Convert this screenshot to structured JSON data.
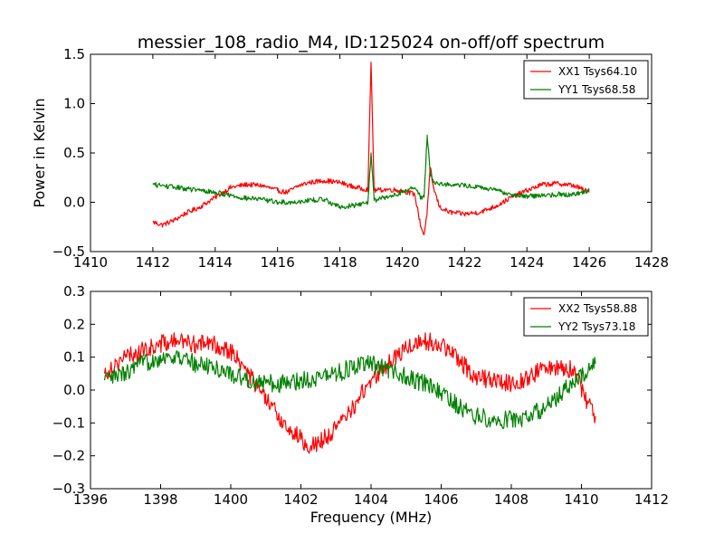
{
  "page": {
    "title": "messier_108_radio_M4, ID:125024 on-off/off spectrum",
    "ylabel": "Power in Kelvin",
    "xlabel": "Frequency (MHz)"
  },
  "colors": {
    "series_1": "#ff0000",
    "series_2": "#008000",
    "axes": "#000000",
    "background": "#ffffff"
  },
  "chart_data": [
    {
      "type": "line",
      "title": "messier_108_radio_M4, ID:125024 on-off/off spectrum",
      "xlabel": "",
      "ylabel": "Power in Kelvin",
      "xlim": [
        1410,
        1428
      ],
      "ylim": [
        -0.5,
        1.5
      ],
      "x_ticks": [
        "1410",
        "1412",
        "1414",
        "1416",
        "1418",
        "1420",
        "1422",
        "1424",
        "1426",
        "1428"
      ],
      "y_ticks": [
        "1.5",
        "1.0",
        "0.5",
        "0.0",
        "−0.5"
      ],
      "grid": false,
      "legend_position": "top-right",
      "series": [
        {
          "name": "XX1 Tsys64.10",
          "color": "#ff0000",
          "x": [
            1412.0,
            1412.3,
            1412.7,
            1413.0,
            1413.5,
            1414.0,
            1414.5,
            1415.0,
            1415.5,
            1416.0,
            1416.3,
            1416.7,
            1417.0,
            1417.5,
            1418.0,
            1418.5,
            1418.9,
            1419.0,
            1419.1,
            1419.5,
            1420.0,
            1420.4,
            1420.6,
            1420.7,
            1420.8,
            1420.9,
            1421.0,
            1421.2,
            1421.5,
            1422.0,
            1422.5,
            1423.0,
            1423.5,
            1424.0,
            1424.5,
            1425.0,
            1425.5,
            1426.0
          ],
          "y": [
            -0.2,
            -0.23,
            -0.18,
            -0.12,
            -0.05,
            0.05,
            0.15,
            0.18,
            0.17,
            0.12,
            0.1,
            0.17,
            0.2,
            0.22,
            0.2,
            0.15,
            0.13,
            1.42,
            0.12,
            0.13,
            0.12,
            0.08,
            -0.25,
            -0.33,
            -0.1,
            0.35,
            0.15,
            -0.05,
            -0.1,
            -0.12,
            -0.1,
            -0.04,
            0.05,
            0.12,
            0.18,
            0.19,
            0.17,
            0.1
          ]
        },
        {
          "name": "YY1 Tsys68.58",
          "color": "#008000",
          "x": [
            1412.0,
            1412.5,
            1413.0,
            1413.5,
            1414.0,
            1414.5,
            1415.0,
            1415.5,
            1416.0,
            1416.5,
            1417.0,
            1417.5,
            1418.0,
            1418.5,
            1418.9,
            1419.0,
            1419.1,
            1419.5,
            1420.0,
            1420.4,
            1420.6,
            1420.7,
            1420.8,
            1420.9,
            1421.0,
            1421.5,
            1422.0,
            1422.5,
            1423.0,
            1423.5,
            1424.0,
            1424.5,
            1425.0,
            1425.5,
            1426.0
          ],
          "y": [
            0.18,
            0.16,
            0.14,
            0.12,
            0.1,
            0.07,
            0.04,
            0.03,
            0.0,
            0.0,
            0.02,
            0.03,
            -0.05,
            -0.03,
            0.0,
            0.5,
            0.02,
            0.05,
            0.1,
            0.15,
            0.05,
            0.05,
            0.68,
            0.3,
            0.2,
            0.18,
            0.17,
            0.15,
            0.12,
            0.08,
            0.06,
            0.07,
            0.08,
            0.08,
            0.12
          ]
        }
      ]
    },
    {
      "type": "line",
      "title": "",
      "xlabel": "Frequency (MHz)",
      "ylabel": "",
      "xlim": [
        1396,
        1412
      ],
      "ylim": [
        -0.3,
        0.3
      ],
      "x_ticks": [
        "1396",
        "1398",
        "1400",
        "1402",
        "1404",
        "1406",
        "1408",
        "1410",
        "1412"
      ],
      "y_ticks": [
        "0.3",
        "0.2",
        "0.1",
        "0.0",
        "−0.1",
        "−0.2",
        "−0.3"
      ],
      "grid": false,
      "legend_position": "top-right",
      "series": [
        {
          "name": "XX2 Tsys58.88",
          "color": "#ff0000",
          "x": [
            1396.4,
            1396.7,
            1397.0,
            1397.5,
            1398.0,
            1398.5,
            1399.0,
            1399.5,
            1400.0,
            1400.5,
            1401.0,
            1401.5,
            1402.0,
            1402.3,
            1402.5,
            1403.0,
            1403.5,
            1404.0,
            1404.5,
            1405.0,
            1405.5,
            1406.0,
            1406.5,
            1407.0,
            1407.5,
            1408.0,
            1408.5,
            1409.0,
            1409.5,
            1409.8,
            1410.0,
            1410.4
          ],
          "y": [
            0.05,
            0.08,
            0.1,
            0.12,
            0.14,
            0.15,
            0.14,
            0.14,
            0.12,
            0.05,
            -0.03,
            -0.1,
            -0.15,
            -0.17,
            -0.16,
            -0.12,
            -0.05,
            0.03,
            0.08,
            0.13,
            0.15,
            0.14,
            0.09,
            0.04,
            0.03,
            0.02,
            0.04,
            0.07,
            0.07,
            0.06,
            0.0,
            -0.08
          ]
        },
        {
          "name": "YY2 Tsys73.18",
          "color": "#008000",
          "x": [
            1396.4,
            1397.0,
            1397.5,
            1398.0,
            1398.5,
            1399.0,
            1399.5,
            1400.0,
            1400.5,
            1401.0,
            1401.5,
            1402.0,
            1402.5,
            1403.0,
            1403.5,
            1404.0,
            1404.5,
            1405.0,
            1405.5,
            1406.0,
            1406.5,
            1407.0,
            1407.5,
            1408.0,
            1408.5,
            1409.0,
            1409.5,
            1410.0,
            1410.4
          ],
          "y": [
            0.03,
            0.05,
            0.08,
            0.1,
            0.1,
            0.08,
            0.07,
            0.05,
            0.03,
            0.02,
            0.02,
            0.03,
            0.04,
            0.05,
            0.07,
            0.08,
            0.06,
            0.04,
            0.02,
            -0.01,
            -0.05,
            -0.08,
            -0.09,
            -0.09,
            -0.08,
            -0.05,
            0.0,
            0.04,
            0.08
          ]
        }
      ]
    }
  ]
}
